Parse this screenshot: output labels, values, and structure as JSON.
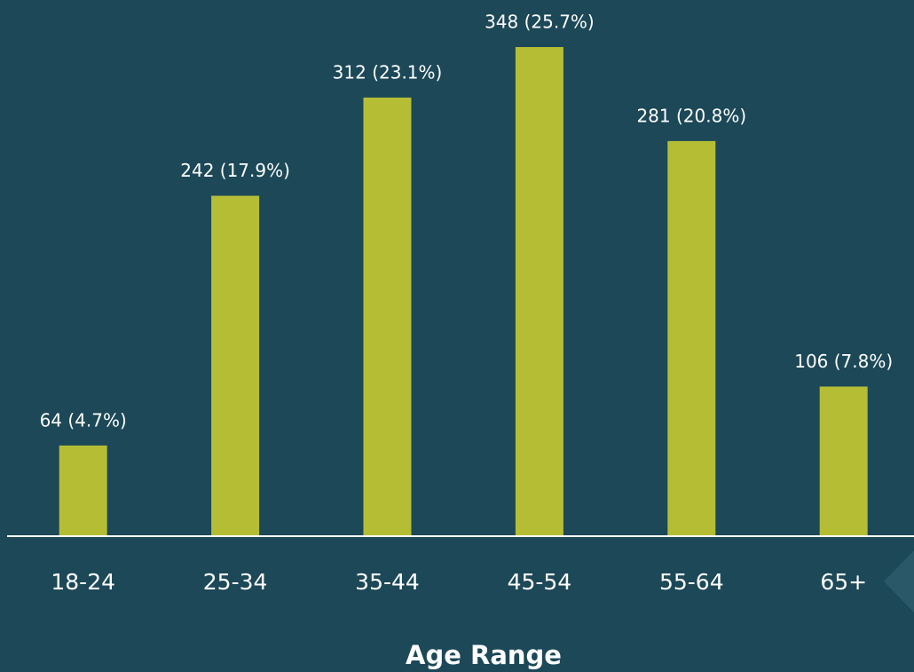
{
  "chart_data": {
    "type": "bar",
    "x_label": "Age Range",
    "categories": [
      "18-24",
      "25-34",
      "35-44",
      "45-54",
      "55-64",
      "65+"
    ],
    "values": [
      64,
      242,
      312,
      348,
      281,
      106
    ],
    "value_labels": [
      "64 (4.7%)",
      "242 (17.9%)",
      "312 (23.1%)",
      "348 (25.7%)",
      "281 (20.8%)",
      "106 (7.8%)"
    ],
    "color": "#b5bd35"
  }
}
